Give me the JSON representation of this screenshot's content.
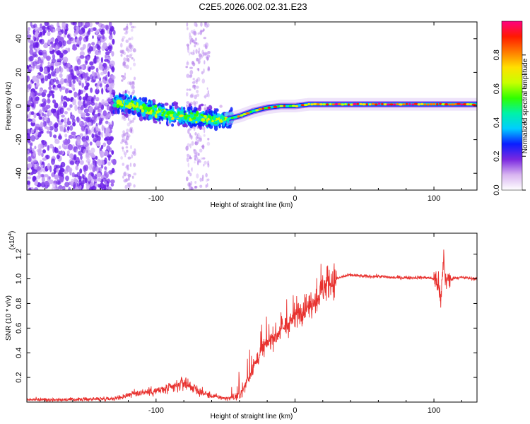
{
  "title": "C2E5.2026.002.02.31.E23",
  "colors": {
    "line": "#e8312e",
    "axis": "#000000",
    "background": "#ffffff"
  },
  "chart_data": [
    {
      "type": "heatmap",
      "xlabel": "Height of straight line (km)",
      "ylabel": "Frequency (Hz)",
      "xlim": [
        -193,
        131
      ],
      "ylim": [
        -50,
        50
      ],
      "xticks": [
        -100,
        0,
        100
      ],
      "xtick_labels": [
        "-100",
        "0",
        "100"
      ],
      "yticks": [
        -40,
        -20,
        0,
        20,
        40
      ],
      "ytick_labels": [
        "-40",
        "-20",
        "0",
        "20",
        "40"
      ],
      "colorbar": {
        "label": "Normalized spectral amplitude",
        "range": [
          0,
          1
        ],
        "ticks": [
          0.0,
          0.2,
          0.4,
          0.6,
          0.8
        ],
        "tick_labels": [
          "0.0",
          "0.2",
          "0.4",
          "0.6",
          "0.8"
        ],
        "colormap": [
          "#ffffff",
          "#d8b4f0",
          "#7a28e0",
          "#0a1eff",
          "#00cdff",
          "#00f2a8",
          "#30ff00",
          "#c8ff00",
          "#ffe000",
          "#ff7a00",
          "#ff1a00",
          "#ff0080"
        ]
      },
      "trace_center_hz": [
        [
          -130,
          2
        ],
        [
          -120,
          1
        ],
        [
          -110,
          -1
        ],
        [
          -100,
          -3
        ],
        [
          -90,
          -5
        ],
        [
          -80,
          -6
        ],
        [
          -70,
          -7
        ],
        [
          -60,
          -8
        ],
        [
          -50,
          -8
        ],
        [
          -40,
          -6
        ],
        [
          -30,
          -3
        ],
        [
          -20,
          -1
        ],
        [
          -10,
          0
        ],
        [
          0,
          0
        ],
        [
          10,
          1
        ],
        [
          20,
          1
        ],
        [
          40,
          1
        ],
        [
          60,
          1
        ],
        [
          80,
          1
        ],
        [
          100,
          1
        ],
        [
          131,
          1
        ]
      ],
      "noise_region_km": [
        -193,
        -130
      ]
    },
    {
      "type": "line",
      "xlabel": "Height of straight line (km)",
      "ylabel": "SNR (10 * v/v)",
      "yscale_label": "(x10",
      "yscale_exp": "4",
      "yscale_close": ")",
      "xlim": [
        -193,
        131
      ],
      "ylim": [
        0,
        1.37
      ],
      "xticks": [
        -100,
        0,
        100
      ],
      "xtick_labels": [
        "-100",
        "0",
        "100"
      ],
      "yticks": [
        0.2,
        0.4,
        0.6,
        0.8,
        1.0,
        1.2
      ],
      "ytick_labels": [
        "0.2",
        "0.4",
        "0.6",
        "0.8",
        "1.0",
        "1.2"
      ],
      "series": [
        {
          "name": "SNR",
          "x": [
            -193,
            -160,
            -130,
            -125,
            -120,
            -110,
            -100,
            -90,
            -85,
            -80,
            -75,
            -70,
            -60,
            -50,
            -42,
            -38,
            -35,
            -30,
            -25,
            -20,
            -15,
            -10,
            -5,
            0,
            5,
            10,
            15,
            20,
            25,
            30,
            35,
            40,
            50,
            60,
            70,
            80,
            90,
            95,
            100,
            103,
            105,
            107,
            108,
            110,
            115,
            120,
            131
          ],
          "values": [
            0.02,
            0.02,
            0.03,
            0.04,
            0.06,
            0.08,
            0.09,
            0.11,
            0.13,
            0.16,
            0.13,
            0.09,
            0.05,
            0.03,
            0.04,
            0.08,
            0.16,
            0.28,
            0.4,
            0.48,
            0.53,
            0.58,
            0.62,
            0.7,
            0.74,
            0.78,
            0.84,
            0.92,
            0.97,
            1.0,
            1.02,
            1.03,
            1.02,
            1.02,
            1.01,
            1.01,
            1.01,
            1.01,
            1.0,
            0.97,
            0.8,
            1.2,
            1.02,
            0.98,
            1.01,
            1.01,
            1.0
          ]
        }
      ]
    }
  ]
}
